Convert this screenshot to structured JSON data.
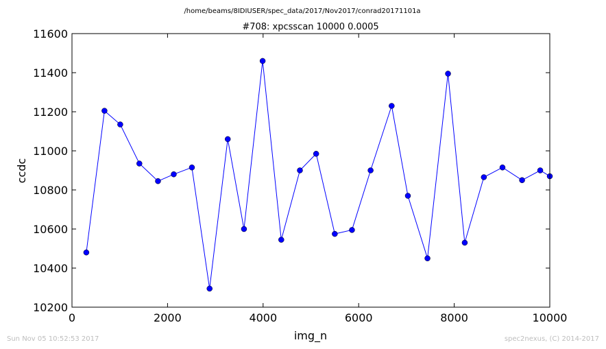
{
  "suptitle": "/home/beams/8IDIUSER/spec_data/2017/Nov2017/conrad20171101a",
  "footer": {
    "timestamp": "Sun Nov 05 10:52:53 2017",
    "credit": "spec2nexus, (C) 2014-2017"
  },
  "chart_data": {
    "type": "line",
    "title": "#708: xpcsscan 10000 0.0005",
    "xlabel": "img_n",
    "ylabel": "ccdc",
    "xlim": [
      0,
      10000
    ],
    "ylim": [
      10200,
      11600
    ],
    "xticks": [
      0,
      2000,
      4000,
      6000,
      8000,
      10000
    ],
    "yticks": [
      10200,
      10400,
      10600,
      10800,
      11000,
      11200,
      11400,
      11600
    ],
    "grid": false,
    "color": "#0000ff",
    "marker": "circle",
    "x": [
      300,
      680,
      1010,
      1410,
      1800,
      2130,
      2510,
      2880,
      3260,
      3600,
      3990,
      4380,
      4770,
      5110,
      5500,
      5860,
      6250,
      6690,
      7030,
      7440,
      7870,
      8220,
      8620,
      9010,
      9420,
      9800,
      10000
    ],
    "y": [
      10480,
      11205,
      11135,
      10935,
      10845,
      10880,
      10915,
      10295,
      11060,
      10600,
      11460,
      10545,
      10900,
      10985,
      10575,
      10595,
      10900,
      11230,
      10770,
      10450,
      11395,
      10530,
      10865,
      10915,
      10850,
      10900,
      10870
    ]
  }
}
